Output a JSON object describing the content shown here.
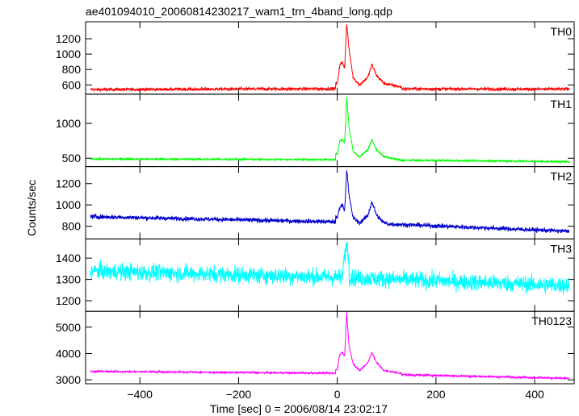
{
  "title": "ae401094010_20060814230217_wam1_trn_4band_long.qdp",
  "chart_data": {
    "type": "line",
    "xlabel": "Time [sec] 0 = 2006/08/14 23:02:17",
    "ylabel": "Counts/sec",
    "xlim": [
      -510,
      480
    ],
    "x_ticks": [
      -400,
      -200,
      0,
      200,
      400
    ],
    "x_tick_labels": [
      "−400",
      "−200",
      "0",
      "200",
      "400"
    ],
    "grid": false,
    "panels": [
      {
        "name": "TH0",
        "color": "#ff0000",
        "ylim": [
          480,
          1420
        ],
        "y_ticks": [
          600,
          800,
          1000,
          1200
        ],
        "baseline": [
          [
            -500,
            540
          ],
          [
            0,
            550
          ],
          [
            480,
            545
          ]
        ],
        "noise": 40,
        "features": [
          {
            "x": 0,
            "y": 620
          },
          {
            "x": 5,
            "y": 850
          },
          {
            "x": 10,
            "y": 900
          },
          {
            "x": 15,
            "y": 820
          },
          {
            "x": 19,
            "y": 1400
          },
          {
            "x": 24,
            "y": 1050
          },
          {
            "x": 32,
            "y": 700
          },
          {
            "x": 45,
            "y": 600
          },
          {
            "x": 62,
            "y": 700
          },
          {
            "x": 70,
            "y": 860
          },
          {
            "x": 80,
            "y": 720
          },
          {
            "x": 95,
            "y": 620
          },
          {
            "x": 130,
            "y": 570
          }
        ]
      },
      {
        "name": "TH1",
        "color": "#00ff00",
        "ylim": [
          380,
          1420
        ],
        "y_ticks": [
          500,
          1000
        ],
        "baseline": [
          [
            -500,
            490
          ],
          [
            0,
            480
          ],
          [
            480,
            450
          ]
        ],
        "noise": 25,
        "features": [
          {
            "x": 0,
            "y": 560
          },
          {
            "x": 5,
            "y": 740
          },
          {
            "x": 10,
            "y": 770
          },
          {
            "x": 15,
            "y": 720
          },
          {
            "x": 19,
            "y": 1370
          },
          {
            "x": 24,
            "y": 950
          },
          {
            "x": 32,
            "y": 600
          },
          {
            "x": 45,
            "y": 520
          },
          {
            "x": 62,
            "y": 620
          },
          {
            "x": 70,
            "y": 760
          },
          {
            "x": 80,
            "y": 620
          },
          {
            "x": 95,
            "y": 520
          },
          {
            "x": 130,
            "y": 470
          }
        ]
      },
      {
        "name": "TH2",
        "color": "#0000cc",
        "ylim": [
          680,
          1360
        ],
        "y_ticks": [
          800,
          1000,
          1200
        ],
        "baseline": [
          [
            -500,
            890
          ],
          [
            0,
            840
          ],
          [
            480,
            750
          ]
        ],
        "noise": 40,
        "features": [
          {
            "x": 0,
            "y": 880
          },
          {
            "x": 5,
            "y": 980
          },
          {
            "x": 10,
            "y": 1000
          },
          {
            "x": 15,
            "y": 950
          },
          {
            "x": 19,
            "y": 1340
          },
          {
            "x": 24,
            "y": 1080
          },
          {
            "x": 32,
            "y": 880
          },
          {
            "x": 45,
            "y": 830
          },
          {
            "x": 62,
            "y": 900
          },
          {
            "x": 70,
            "y": 1030
          },
          {
            "x": 80,
            "y": 900
          },
          {
            "x": 95,
            "y": 830
          },
          {
            "x": 130,
            "y": 800
          }
        ]
      },
      {
        "name": "TH3",
        "color": "#00ffff",
        "ylim": [
          1150,
          1490
        ],
        "y_ticks": [
          1200,
          1300,
          1400
        ],
        "baseline": [
          [
            -500,
            1340
          ],
          [
            0,
            1310
          ],
          [
            480,
            1270
          ]
        ],
        "noise": 75,
        "features": [
          {
            "x": 15,
            "y": 1400
          },
          {
            "x": 19,
            "y": 1480
          },
          {
            "x": 24,
            "y": 1380
          }
        ]
      },
      {
        "name": "TH0123",
        "color": "#ff00ff",
        "ylim": [
          2850,
          5600
        ],
        "y_ticks": [
          3000,
          4000,
          5000
        ],
        "baseline": [
          [
            -500,
            3320
          ],
          [
            0,
            3250
          ],
          [
            480,
            3050
          ]
        ],
        "noise": 70,
        "features": [
          {
            "x": 0,
            "y": 3400
          },
          {
            "x": 5,
            "y": 3950
          },
          {
            "x": 10,
            "y": 4050
          },
          {
            "x": 15,
            "y": 3900
          },
          {
            "x": 19,
            "y": 5550
          },
          {
            "x": 24,
            "y": 4300
          },
          {
            "x": 32,
            "y": 3600
          },
          {
            "x": 45,
            "y": 3350
          },
          {
            "x": 62,
            "y": 3650
          },
          {
            "x": 70,
            "y": 4050
          },
          {
            "x": 80,
            "y": 3650
          },
          {
            "x": 95,
            "y": 3350
          },
          {
            "x": 130,
            "y": 3250
          }
        ]
      }
    ]
  }
}
